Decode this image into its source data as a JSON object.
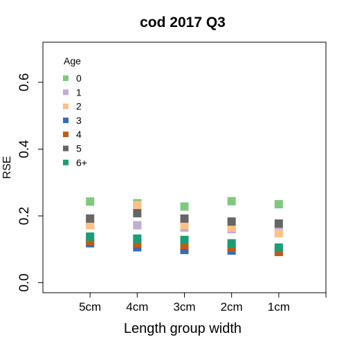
{
  "chart_data": {
    "type": "scatter",
    "title": "cod 2017 Q3",
    "xlabel": "Length group width",
    "ylabel": "RSE",
    "categories": [
      "5cm",
      "4cm",
      "3cm",
      "2cm",
      "1cm"
    ],
    "ylim": [
      -0.03,
      0.72
    ],
    "yticks": [
      "0.0",
      "0.2",
      "0.4",
      "0.6"
    ],
    "ytick_values": [
      0.0,
      0.2,
      0.4,
      0.6
    ],
    "grid": false,
    "legend": {
      "title": "Age",
      "position": "top-left",
      "entries": [
        "0",
        "1",
        "2",
        "3",
        "4",
        "5",
        "6+"
      ]
    },
    "series": [
      {
        "name": "0",
        "color": "#7fc97f",
        "values": [
          0.243,
          0.238,
          0.228,
          0.244,
          0.235
        ]
      },
      {
        "name": "1",
        "color": "#beaed4",
        "values": [
          0.175,
          0.172,
          0.165,
          0.16,
          0.163
        ]
      },
      {
        "name": "2",
        "color": "#fdc086",
        "values": [
          0.172,
          0.232,
          0.173,
          0.165,
          0.148
        ]
      },
      {
        "name": "3",
        "color": "#386cb0",
        "values": [
          0.118,
          0.106,
          0.098,
          0.096,
          0.095
        ]
      },
      {
        "name": "4",
        "color": "#bf5b17",
        "values": [
          0.125,
          0.118,
          0.113,
          0.105,
          0.092
        ]
      },
      {
        "name": "5",
        "color": "#666666",
        "values": [
          0.192,
          0.208,
          0.192,
          0.183,
          0.177
        ]
      },
      {
        "name": "6+",
        "color": "#1b9e77",
        "values": [
          0.138,
          0.132,
          0.128,
          0.118,
          0.105
        ]
      }
    ]
  }
}
